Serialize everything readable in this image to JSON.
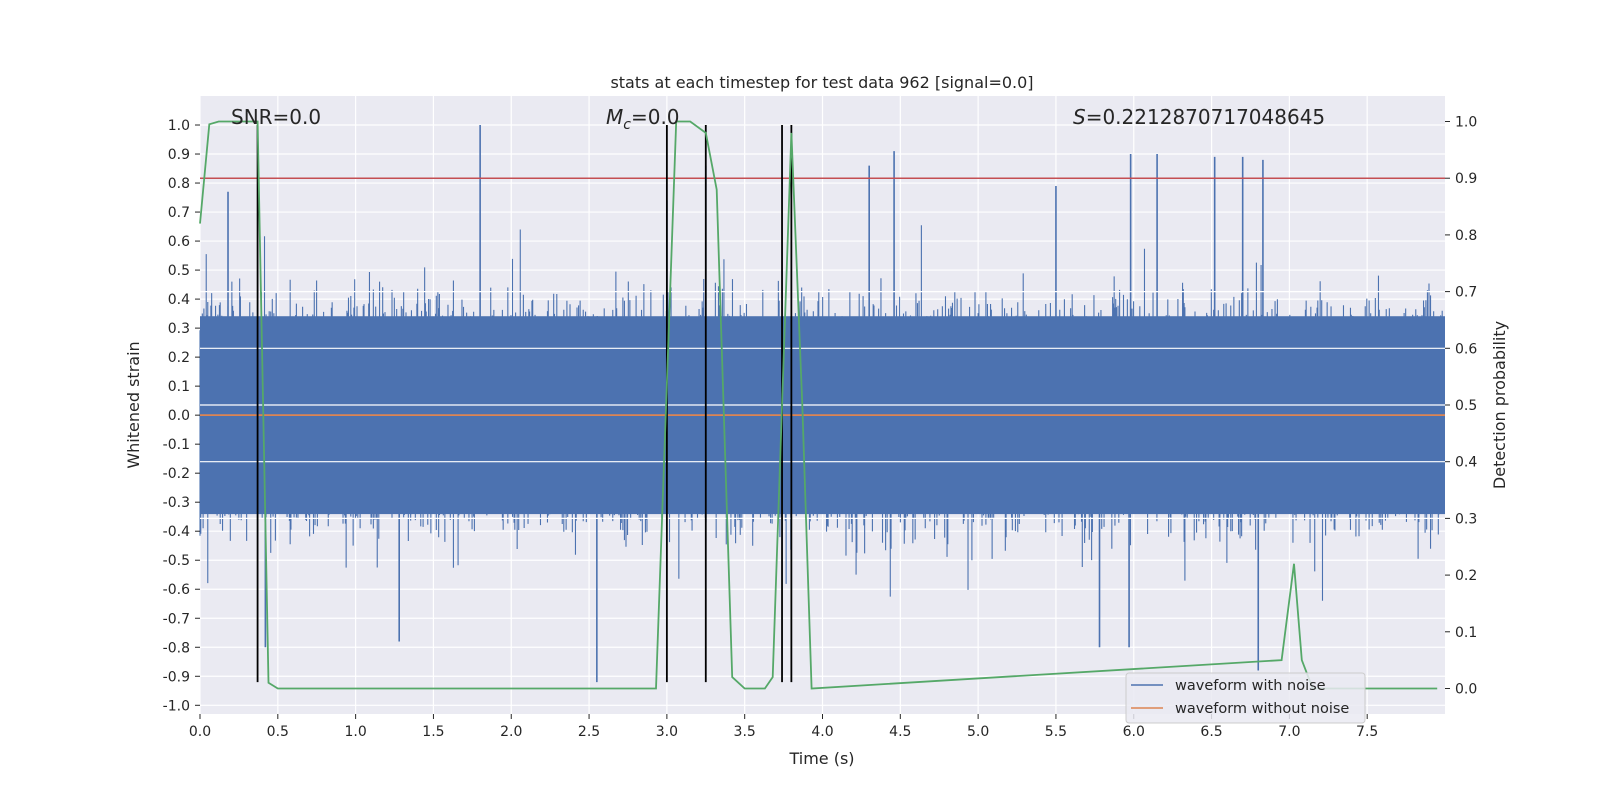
{
  "chart_data": {
    "type": "line",
    "title": "stats at each timestep for test data 962 [signal=0.0]",
    "xlabel": "Time (s)",
    "ylabel_left": "Whitened strain",
    "ylabel_right": "Detection probability",
    "xlim": [
      0.0,
      8.0
    ],
    "ylim_left": [
      -1.03,
      1.1
    ],
    "ylim_right": [
      -0.045,
      1.045
    ],
    "x_ticks": [
      "0.0",
      "0.5",
      "1.0",
      "1.5",
      "2.0",
      "2.5",
      "3.0",
      "3.5",
      "4.0",
      "4.5",
      "5.0",
      "5.5",
      "6.0",
      "6.5",
      "7.0",
      "7.5"
    ],
    "y_left_ticks": [
      "-1.0",
      "-0.9",
      "-0.8",
      "-0.7",
      "-0.6",
      "-0.5",
      "-0.4",
      "-0.3",
      "-0.2",
      "-0.1",
      "0.0",
      "0.1",
      "0.2",
      "0.3",
      "0.4",
      "0.5",
      "0.6",
      "0.7",
      "0.8",
      "0.9",
      "1.0"
    ],
    "y_right_ticks": [
      "0.0",
      "0.1",
      "0.2",
      "0.3",
      "0.4",
      "0.5",
      "0.6",
      "0.7",
      "0.8",
      "0.9",
      "1.0"
    ],
    "grid": true,
    "annotations": {
      "snr": "SNR=0.0",
      "mc_symbol": "M",
      "mc_sub": "c",
      "mc_value": "=0.0",
      "s_symbol": "S",
      "s_value": "=0.2212870717048645"
    },
    "legend": {
      "position": "lower right",
      "entries": [
        {
          "label": "waveform with noise",
          "color": "#4c72b0"
        },
        {
          "label": "waveform without noise",
          "color": "#dd8452"
        }
      ]
    },
    "series": [
      {
        "name": "waveform with noise",
        "axis": "left",
        "color": "#4c72b0",
        "kind": "noise",
        "band_min": -0.55,
        "band_max": 0.55,
        "peaks": [
          {
            "x": 0.18,
            "y": 0.77
          },
          {
            "x": 1.8,
            "y": 1.0
          },
          {
            "x": 2.55,
            "y": -0.92
          },
          {
            "x": 1.28,
            "y": -0.78
          },
          {
            "x": 4.3,
            "y": 0.86
          },
          {
            "x": 4.46,
            "y": 0.91
          },
          {
            "x": 5.98,
            "y": 0.9
          },
          {
            "x": 6.15,
            "y": 0.9
          },
          {
            "x": 6.52,
            "y": 0.89
          },
          {
            "x": 6.7,
            "y": 0.89
          },
          {
            "x": 6.83,
            "y": 0.88
          },
          {
            "x": 6.8,
            "y": -0.88
          },
          {
            "x": 5.97,
            "y": -0.8
          },
          {
            "x": 5.78,
            "y": -0.8
          },
          {
            "x": 3.0,
            "y": 0.74
          },
          {
            "x": 0.42,
            "y": -0.8
          },
          {
            "x": 3.25,
            "y": 0.86
          },
          {
            "x": 5.5,
            "y": 0.79
          }
        ]
      },
      {
        "name": "waveform without noise",
        "axis": "left",
        "color": "#dd8452",
        "x": [
          0.0,
          8.0
        ],
        "y": [
          0.0,
          0.0
        ]
      },
      {
        "name": "detection probability",
        "axis": "right",
        "color": "#55a868",
        "x": [
          0.0,
          0.06,
          0.12,
          0.37,
          0.44,
          0.5,
          2.93,
          3.06,
          3.15,
          3.25,
          3.32,
          3.42,
          3.5,
          3.63,
          3.68,
          3.8,
          3.87,
          3.93,
          6.95,
          7.03,
          7.08,
          7.15,
          7.95
        ],
        "y": [
          0.82,
          0.995,
          1.0,
          1.0,
          0.01,
          0.0,
          0.0,
          1.0,
          1.0,
          0.98,
          0.88,
          0.02,
          0.0,
          0.0,
          0.02,
          0.98,
          0.5,
          0.0,
          0.05,
          0.22,
          0.05,
          0.0,
          0.0
        ]
      }
    ],
    "threshold": {
      "axis": "right",
      "y": 0.9,
      "color": "#c44e52"
    },
    "vlines": [
      0.37,
      3.0,
      3.25,
      3.74,
      3.8
    ],
    "vline_range": [
      -0.92,
      1.0
    ],
    "vline_color": "#000000"
  }
}
